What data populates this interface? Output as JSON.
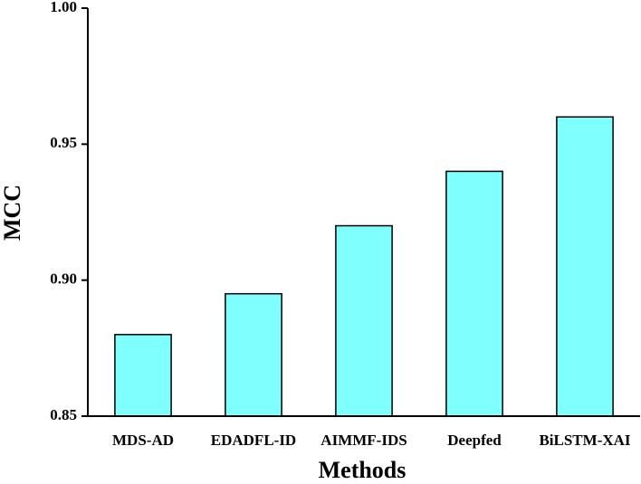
{
  "chart_data": {
    "type": "bar",
    "x_label": "Methods",
    "y_label": "MCC",
    "categories": [
      "MDS-AD",
      "EDADFL-ID",
      "AIMMF-IDS",
      "Deepfed",
      "BiLSTM-XAI"
    ],
    "values": [
      0.88,
      0.895,
      0.92,
      0.94,
      0.96
    ],
    "color": "#80ffff",
    "ylim": [
      0.85,
      1.0
    ],
    "yticks": [
      0.85,
      {
        "value": 0.9,
        "label": "0.90"
      },
      0.95,
      {
        "value": 1.0,
        "label": "1.00"
      }
    ],
    "grid": false
  }
}
